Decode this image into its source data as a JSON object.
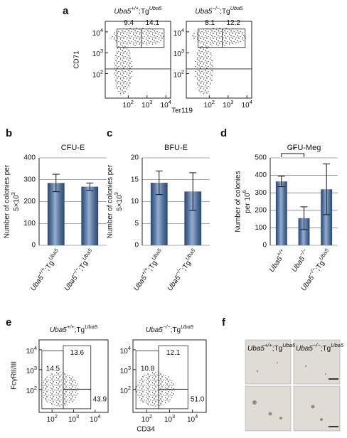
{
  "chart_data": [
    {
      "type": "flow",
      "panel": "a",
      "ylabel": "CD71",
      "xlabel": "Ter119",
      "log": true,
      "xlim": [
        6,
        18000
      ],
      "ylim": [
        6.7,
        32000
      ],
      "xticks": [
        {
          "value": 100,
          "label": "10",
          "exp": "2"
        },
        {
          "value": 1000,
          "label": "10",
          "exp": "3"
        },
        {
          "value": 10000,
          "label": "10",
          "exp": "4"
        }
      ],
      "yticks": [
        {
          "value": 100,
          "label": "10",
          "exp": "2"
        },
        {
          "value": 1000,
          "label": "10",
          "exp": "3"
        },
        {
          "value": 10000,
          "label": "10",
          "exp": "4"
        }
      ],
      "plots": [
        {
          "title": {
            "gene": "Uba5",
            "genotype": "+/+",
            "tg": ";Tg",
            "tg_sup": "Uba5"
          },
          "values": [
            9.4,
            14.1
          ]
        },
        {
          "title": {
            "gene": "Uba5",
            "genotype": "−/−",
            "tg": ";Tg",
            "tg_sup": "Uba5"
          },
          "values": [
            8.1,
            12.2
          ]
        }
      ]
    },
    {
      "type": "bar",
      "panel": "b",
      "title": "CFU-E",
      "ylabel": {
        "line1": "Number of colonies per",
        "line2": "5×10",
        "sup": "3"
      },
      "categories": [
        {
          "gene": "Uba5",
          "genotype": "+/+",
          "tg": ";Tg",
          "tg_sup": "Uba5"
        },
        {
          "gene": "Uba5",
          "genotype": "−/−",
          "tg": ";Tg",
          "tg_sup": "Uba5"
        }
      ],
      "values": [
        285,
        268
      ],
      "errors": [
        40,
        17
      ],
      "color": "#3f6fb0",
      "ylim": [
        0,
        400
      ],
      "yticks": [
        0,
        100,
        200,
        300,
        400
      ],
      "grid": true
    },
    {
      "type": "bar",
      "panel": "c",
      "title": "BFU-E",
      "ylabel": {
        "line1": "Number of colonies per",
        "line2": "5×10",
        "sup": "3"
      },
      "categories": [
        {
          "gene": "Uba5",
          "genotype": "+/+",
          "tg": ";Tg",
          "tg_sup": "Uba5"
        },
        {
          "gene": "Uba5",
          "genotype": "−/−",
          "tg": ";Tg",
          "tg_sup": "Uba5"
        }
      ],
      "values": [
        14.3,
        12.3
      ],
      "errors": [
        2.7,
        4.3
      ],
      "color": "#3f6fb0",
      "ylim": [
        0,
        20
      ],
      "yticks": [
        0,
        5,
        10,
        15,
        20
      ],
      "grid": true
    },
    {
      "type": "bar",
      "panel": "d",
      "title": "CFU-Meg",
      "ylabel": {
        "line1": "Number of colonies",
        "line2": "per 10",
        "sup": "6"
      },
      "categories": [
        {
          "gene": "Uba5",
          "genotype": "+/+"
        },
        {
          "gene": "Uba5",
          "genotype": "−/−"
        },
        {
          "gene": "Uba5",
          "genotype": "−/−",
          "tg": ";Tg",
          "tg_sup": "Uba5"
        }
      ],
      "values": [
        365,
        155,
        320
      ],
      "errors": [
        30,
        65,
        145
      ],
      "color": "#3f6fb0",
      "ylim": [
        0,
        500
      ],
      "yticks": [
        0,
        100,
        200,
        300,
        400,
        500
      ],
      "grid": true,
      "annotation": "**"
    },
    {
      "type": "flow",
      "panel": "e",
      "ylabel": "FcγRII/III",
      "xlabel": "CD34",
      "log": true,
      "xlim": [
        25,
        40000
      ],
      "ylim": [
        7,
        31600
      ],
      "xticks": [
        {
          "value": 100,
          "label": "10",
          "exp": "2"
        },
        {
          "value": 1000,
          "label": "10",
          "exp": "3"
        },
        {
          "value": 10000,
          "label": "10",
          "exp": "4"
        }
      ],
      "yticks": [
        {
          "value": 100,
          "label": "10",
          "exp": "2"
        },
        {
          "value": 1000,
          "label": "10",
          "exp": "3"
        },
        {
          "value": 10000,
          "label": "10",
          "exp": "4"
        }
      ],
      "plots": [
        {
          "title": {
            "gene": "Uba5",
            "genotype": "+/+",
            "tg": ";Tg",
            "tg_sup": "Uba5"
          },
          "values": [
            14.5,
            13.6,
            43.9
          ],
          "value_labels": [
            "14.5",
            "13.6",
            "43.9"
          ]
        },
        {
          "title": {
            "gene": "Uba5",
            "genotype": "−/−",
            "tg": ";Tg",
            "tg_sup": "Uba5"
          },
          "values": [
            10.8,
            12.1,
            51.0
          ],
          "value_labels": [
            "10.8",
            "12.1",
            "51.0"
          ]
        }
      ]
    }
  ],
  "panel_f": {
    "label": "f",
    "images": [
      {
        "title": {
          "gene": "Uba5",
          "genotype": "+/+",
          "tg": ";Tg",
          "tg_sup": "Uba5"
        }
      },
      {
        "title": {
          "gene": "Uba5",
          "genotype": "−/−",
          "tg": ";Tg",
          "tg_sup": "Uba5"
        }
      }
    ]
  }
}
